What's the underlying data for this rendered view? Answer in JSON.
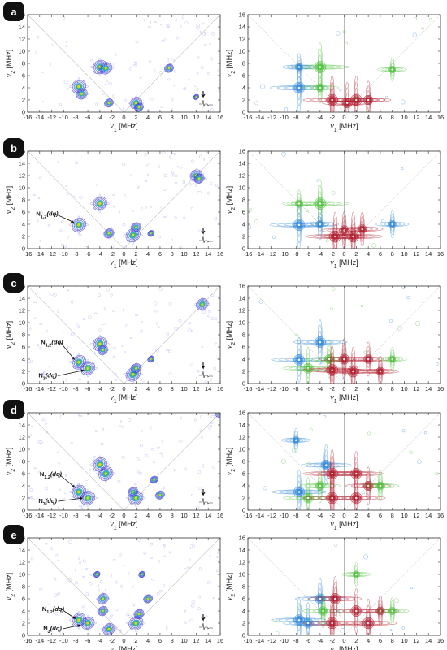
{
  "figure": {
    "x_tick_labels": [
      "-16",
      "-14",
      "-12",
      "-10",
      "-8",
      "-6",
      "-4",
      "-2",
      "0",
      "2",
      "4",
      "6",
      "8",
      "10",
      "12",
      "14",
      "16"
    ],
    "y_tick_labels": [
      "0",
      "2",
      "4",
      "6",
      "8",
      "10",
      "12",
      "14",
      "16"
    ],
    "xlabel_symbol": "ν",
    "xlabel_sub": "1",
    "xlabel_unit": " [MHz]",
    "ylabel_symbol": "ν",
    "ylabel_sub": "2",
    "ylabel_unit": " [MHz]",
    "colors": {
      "experimental_low": "#3a3ad0",
      "experimental_high": "#f2e200",
      "sim_blue": "#2e86d6",
      "sim_green": "#4cbf3a",
      "sim_red": "#b0182a",
      "label_bg": "#111111"
    }
  },
  "chart_data": [
    {
      "panel": "a",
      "side": "experimental",
      "type": "heatmap",
      "xlim": [
        -16,
        16
      ],
      "ylim": [
        0,
        16
      ],
      "grid": false,
      "peaks": [
        [
          -7.5,
          4.2,
          1.0
        ],
        [
          -7.0,
          3.0,
          0.7
        ],
        [
          -4.0,
          7.4,
          1.0
        ],
        [
          -3.0,
          7.2,
          0.8
        ],
        [
          -2.5,
          1.5,
          0.5
        ],
        [
          2.0,
          1.5,
          0.8
        ],
        [
          2.5,
          0.8,
          0.5
        ],
        [
          7.5,
          7.2,
          0.5
        ],
        [
          12.0,
          2.5,
          0.2
        ]
      ],
      "annotations": []
    },
    {
      "panel": "a",
      "side": "simulated",
      "type": "heatmap",
      "xlim": [
        -16,
        16
      ],
      "ylim": [
        0,
        16
      ],
      "grid": false,
      "peaks": [
        [
          -7.5,
          4.0,
          1.0,
          "blue"
        ],
        [
          -4.0,
          7.4,
          1.0,
          "green"
        ],
        [
          -7.5,
          7.4,
          0.4,
          "blue"
        ],
        [
          -4.0,
          4.0,
          0.5,
          "green"
        ],
        [
          -2.0,
          2.0,
          1.0,
          "red"
        ],
        [
          2.0,
          2.0,
          1.0,
          "red"
        ],
        [
          0.5,
          1.5,
          0.8,
          "red"
        ],
        [
          4.0,
          2.0,
          0.7,
          "red"
        ],
        [
          8.0,
          7.0,
          0.3,
          "green"
        ]
      ],
      "annotations": []
    },
    {
      "panel": "b",
      "side": "experimental",
      "type": "heatmap",
      "xlim": [
        -16,
        16
      ],
      "ylim": [
        0,
        16
      ],
      "grid": false,
      "peaks": [
        [
          -7.5,
          3.9,
          1.0
        ],
        [
          -4.0,
          7.4,
          1.0
        ],
        [
          -2.5,
          2.5,
          0.6
        ],
        [
          1.5,
          2.2,
          1.0
        ],
        [
          2.0,
          3.5,
          0.6
        ],
        [
          4.5,
          2.5,
          0.3
        ],
        [
          12.0,
          12.0,
          0.8
        ],
        [
          12.5,
          11.5,
          0.6
        ]
      ],
      "annotations": [
        {
          "text_main": "N",
          "text_sub": "1,2",
          "text_tag": "(dq)",
          "x": -14.6,
          "y": 5.4,
          "tx": -8.3,
          "ty": 4.3
        }
      ]
    },
    {
      "panel": "b",
      "side": "simulated",
      "type": "heatmap",
      "xlim": [
        -16,
        16
      ],
      "ylim": [
        0,
        16
      ],
      "grid": false,
      "peaks": [
        [
          -7.5,
          3.9,
          1.0,
          "blue"
        ],
        [
          -4.0,
          7.4,
          1.0,
          "green"
        ],
        [
          -7.5,
          7.4,
          0.4,
          "green"
        ],
        [
          -4.0,
          4.0,
          0.5,
          "blue"
        ],
        [
          -1.5,
          2.0,
          1.0,
          "red"
        ],
        [
          1.5,
          2.0,
          1.0,
          "red"
        ],
        [
          0.0,
          3.0,
          0.7,
          "red"
        ],
        [
          3.0,
          3.2,
          0.6,
          "red"
        ],
        [
          8.0,
          4.0,
          0.4,
          "blue"
        ]
      ],
      "annotations": []
    },
    {
      "panel": "c",
      "side": "experimental",
      "type": "heatmap",
      "xlim": [
        -16,
        16
      ],
      "ylim": [
        0,
        16
      ],
      "grid": false,
      "peaks": [
        [
          -7.5,
          3.5,
          1.0
        ],
        [
          -6.0,
          2.5,
          1.0
        ],
        [
          -4.0,
          6.5,
          1.0
        ],
        [
          -3.5,
          5.5,
          0.6
        ],
        [
          1.5,
          1.5,
          1.0
        ],
        [
          2.0,
          2.5,
          0.6
        ],
        [
          4.5,
          4.0,
          0.3
        ],
        [
          13.0,
          13.0,
          0.8
        ]
      ],
      "annotations": [
        {
          "text_main": "N",
          "text_sub": "1,2",
          "text_tag": "(dq)",
          "x": -13.8,
          "y": 6.5,
          "tx": -8.2,
          "ty": 3.9
        },
        {
          "text_main": "N",
          "text_sub": "3",
          "text_tag": "(dq)",
          "x": -14.2,
          "y": 1.0,
          "tx": -6.6,
          "ty": 2.2
        }
      ]
    },
    {
      "panel": "c",
      "side": "simulated",
      "type": "heatmap",
      "xlim": [
        -16,
        16
      ],
      "ylim": [
        0,
        16
      ],
      "grid": false,
      "peaks": [
        [
          -7.5,
          3.9,
          0.9,
          "blue"
        ],
        [
          -4.0,
          6.8,
          0.9,
          "blue"
        ],
        [
          -6.0,
          2.5,
          0.8,
          "green"
        ],
        [
          -2.5,
          4.0,
          0.7,
          "green"
        ],
        [
          -2.0,
          2.2,
          1.0,
          "red"
        ],
        [
          1.5,
          2.0,
          1.0,
          "red"
        ],
        [
          0.0,
          4.0,
          0.8,
          "red"
        ],
        [
          4.0,
          4.0,
          0.6,
          "red"
        ],
        [
          6.0,
          2.0,
          0.5,
          "red"
        ],
        [
          8.0,
          4.0,
          0.3,
          "green"
        ]
      ],
      "annotations": []
    },
    {
      "panel": "d",
      "side": "experimental",
      "type": "heatmap",
      "xlim": [
        -16,
        16
      ],
      "ylim": [
        0,
        16
      ],
      "grid": false,
      "peaks": [
        [
          -7.5,
          3.0,
          1.0
        ],
        [
          -6.0,
          2.0,
          1.0
        ],
        [
          -4.0,
          7.5,
          1.0
        ],
        [
          -3.0,
          6.0,
          1.0
        ],
        [
          2.0,
          2.0,
          1.0
        ],
        [
          1.5,
          3.0,
          0.6
        ],
        [
          5.0,
          5.0,
          0.4
        ],
        [
          6.0,
          2.5,
          0.5
        ],
        [
          16.0,
          16.0,
          0.6
        ]
      ],
      "annotations": [
        {
          "text_main": "N",
          "text_sub": "1,2",
          "text_tag": "(dq)",
          "x": -14.0,
          "y": 5.6,
          "tx": -8.1,
          "ty": 3.7
        },
        {
          "text_main": "N",
          "text_sub": "3",
          "text_tag": "(dq)",
          "x": -14.2,
          "y": 1.2,
          "tx": -6.8,
          "ty": 2.0
        }
      ]
    },
    {
      "panel": "d",
      "side": "simulated",
      "type": "heatmap",
      "xlim": [
        -16,
        16
      ],
      "ylim": [
        0,
        16
      ],
      "grid": false,
      "peaks": [
        [
          -7.5,
          3.0,
          0.9,
          "blue"
        ],
        [
          -3.0,
          7.4,
          0.8,
          "blue"
        ],
        [
          -6.0,
          2.0,
          0.8,
          "green"
        ],
        [
          -4.0,
          4.0,
          0.6,
          "green"
        ],
        [
          -2.0,
          6.0,
          1.0,
          "red"
        ],
        [
          -2.0,
          2.0,
          1.0,
          "red"
        ],
        [
          2.0,
          6.0,
          0.9,
          "red"
        ],
        [
          2.0,
          2.0,
          1.0,
          "red"
        ],
        [
          4.0,
          4.0,
          0.7,
          "red"
        ],
        [
          6.0,
          4.0,
          0.5,
          "green"
        ],
        [
          -8.0,
          11.5,
          0.3,
          "blue"
        ]
      ],
      "annotations": []
    },
    {
      "panel": "e",
      "side": "experimental",
      "type": "heatmap",
      "xlim": [
        -16,
        16
      ],
      "ylim": [
        0,
        16
      ],
      "grid": false,
      "peaks": [
        [
          -7.5,
          2.5,
          1.0
        ],
        [
          -6.0,
          2.0,
          0.9
        ],
        [
          -3.5,
          6.0,
          0.7
        ],
        [
          -3.5,
          4.0,
          0.6
        ],
        [
          -2.5,
          1.0,
          0.8
        ],
        [
          2.0,
          2.0,
          1.0
        ],
        [
          2.5,
          3.5,
          0.6
        ],
        [
          4.0,
          6.0,
          0.5
        ],
        [
          3.0,
          10.0,
          0.3
        ],
        [
          -4.5,
          10.0,
          0.3
        ]
      ],
      "annotations": [
        {
          "text_main": "N",
          "text_sub": "1,2",
          "text_tag": "(dq)",
          "x": -13.6,
          "y": 4.0,
          "tx": -8.0,
          "ty": 2.7
        },
        {
          "text_main": "N",
          "text_sub": "3",
          "text_tag": "(dq)",
          "x": -13.4,
          "y": 0.8,
          "tx": -7.2,
          "ty": 1.7
        }
      ]
    },
    {
      "panel": "e",
      "side": "simulated",
      "type": "heatmap",
      "xlim": [
        -16,
        16
      ],
      "ylim": [
        0,
        16
      ],
      "grid": false,
      "peaks": [
        [
          -7.5,
          2.5,
          0.9,
          "blue"
        ],
        [
          -6.0,
          2.0,
          0.8,
          "blue"
        ],
        [
          -4.0,
          6.0,
          0.8,
          "blue"
        ],
        [
          -3.5,
          4.0,
          0.6,
          "green"
        ],
        [
          -2.0,
          2.0,
          1.0,
          "red"
        ],
        [
          -1.5,
          6.0,
          0.9,
          "red"
        ],
        [
          2.0,
          4.0,
          0.9,
          "red"
        ],
        [
          4.0,
          2.0,
          1.0,
          "red"
        ],
        [
          6.0,
          4.0,
          0.5,
          "red"
        ],
        [
          8.0,
          4.0,
          0.4,
          "green"
        ],
        [
          2.0,
          10.0,
          0.3,
          "green"
        ]
      ],
      "annotations": []
    }
  ]
}
